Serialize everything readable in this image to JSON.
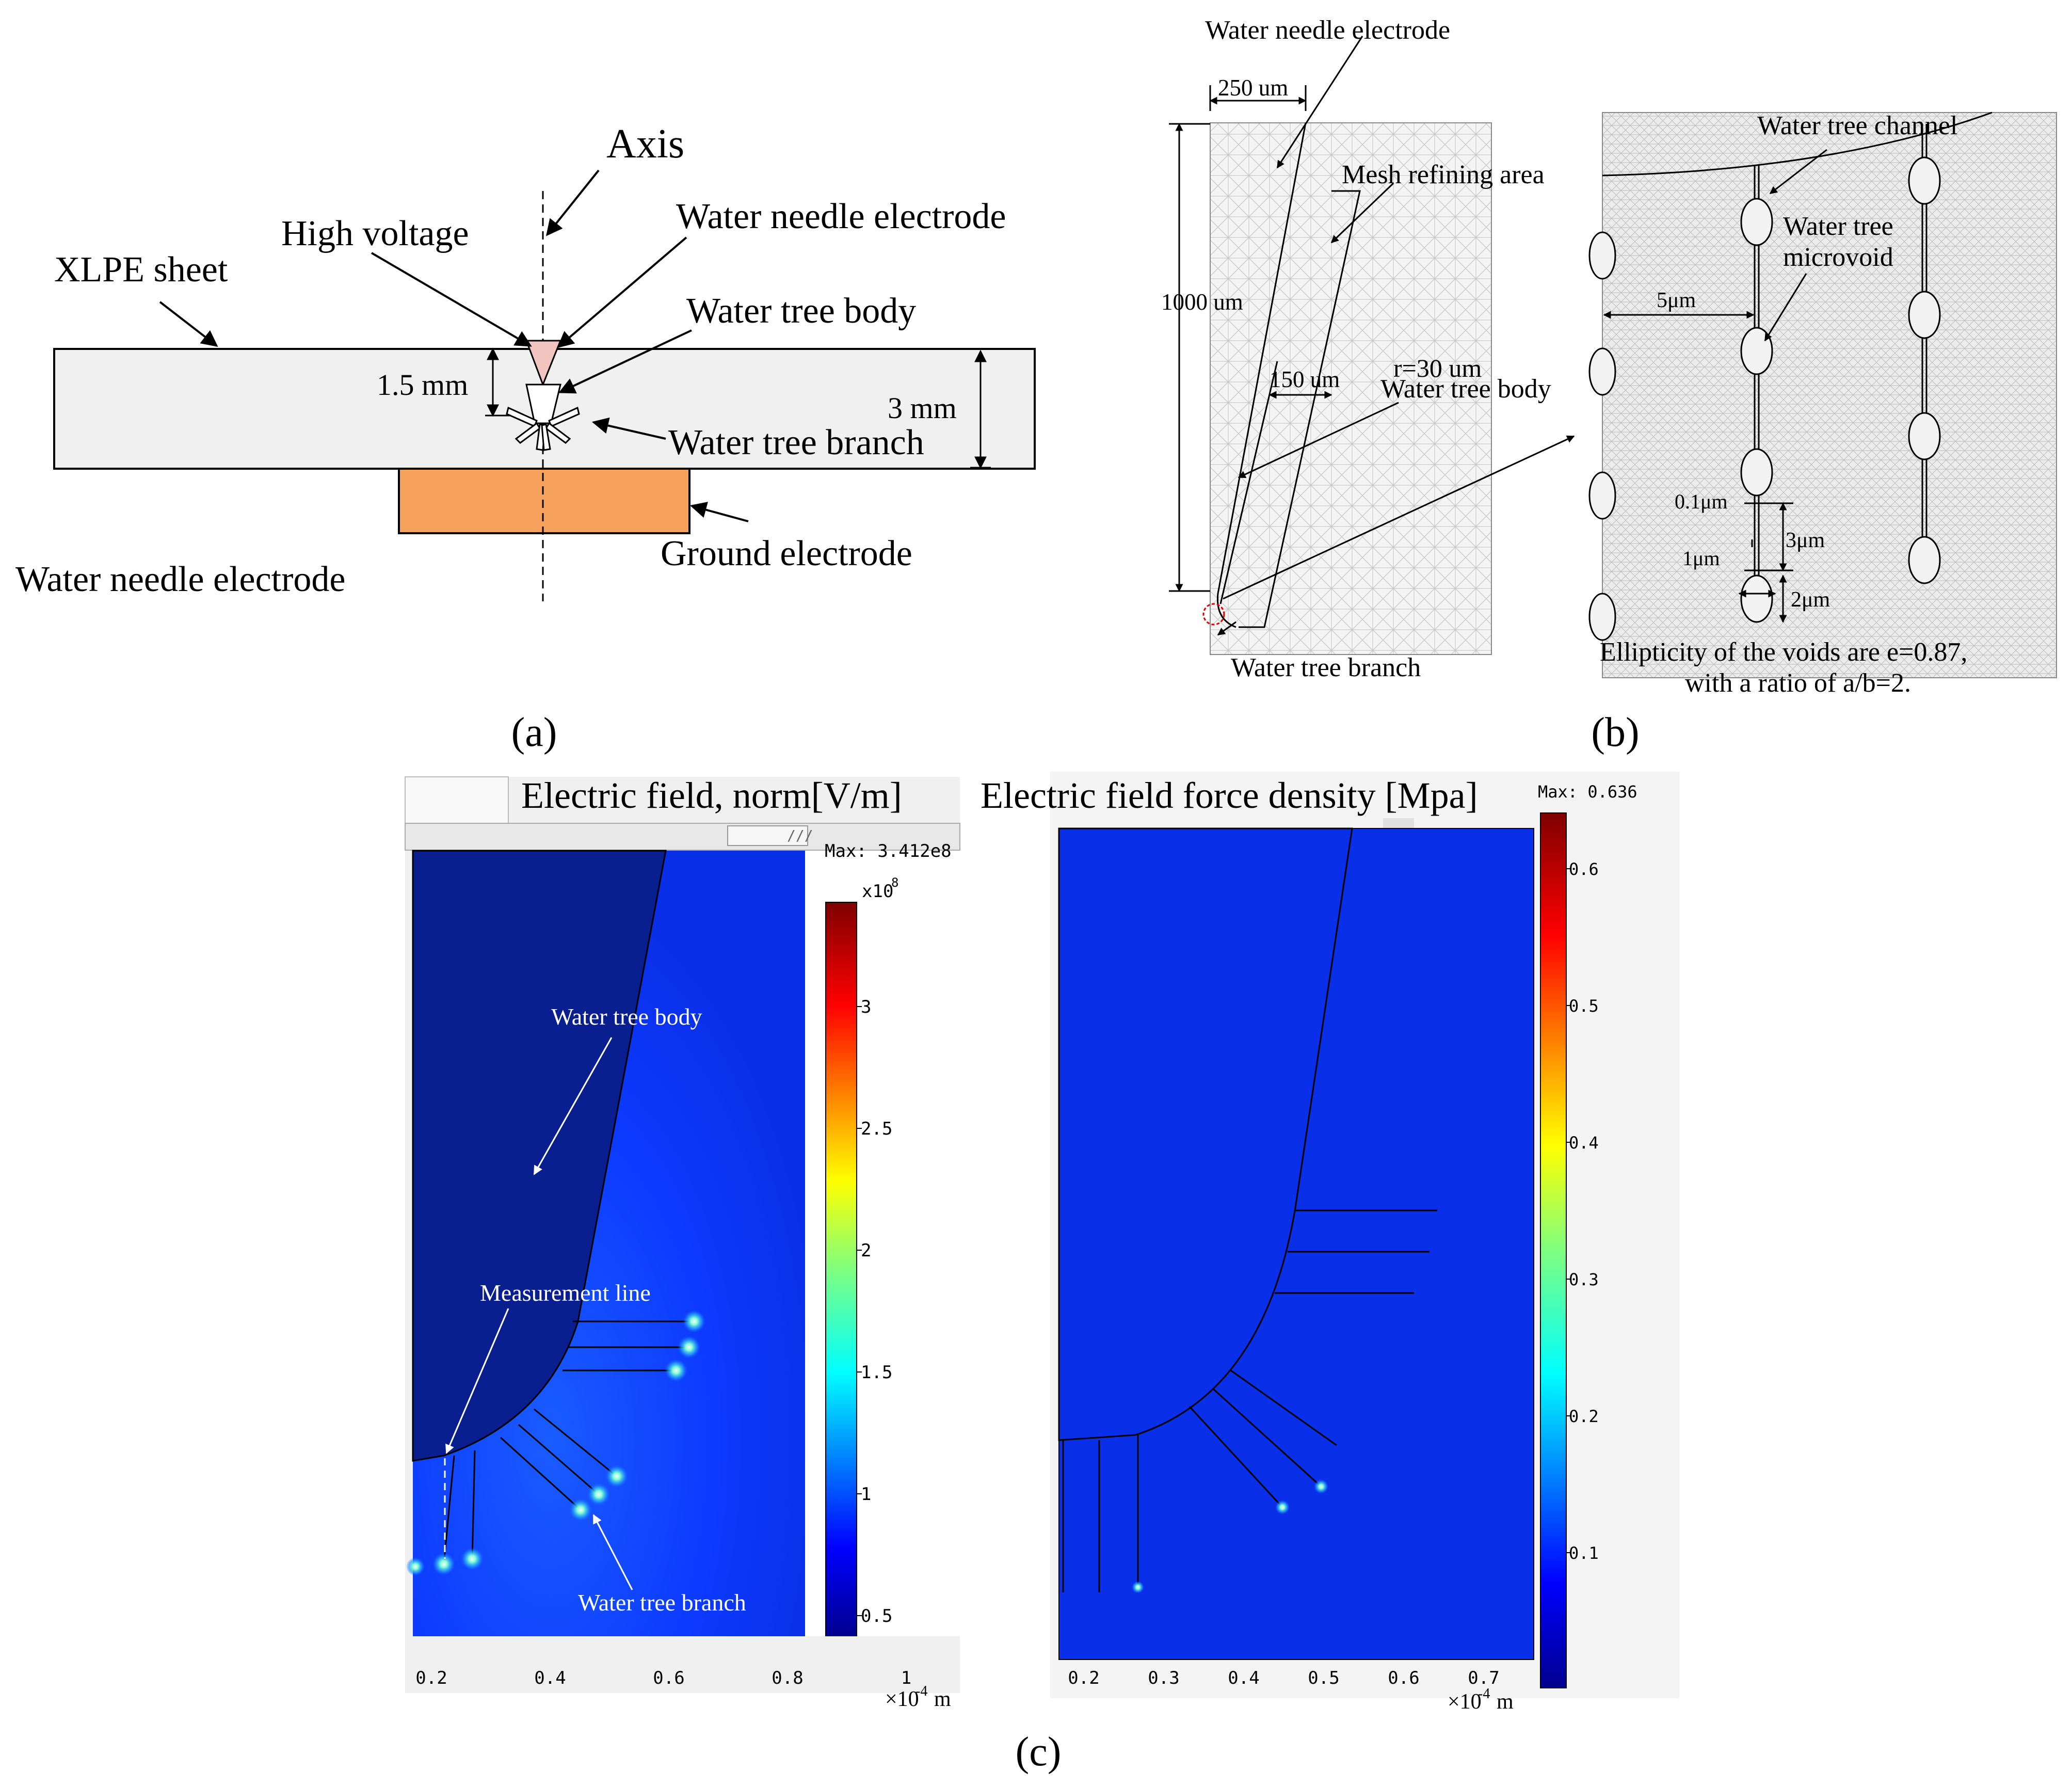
{
  "panel_a": {
    "caption": "(a)",
    "labels": {
      "axis": "Axis",
      "high_voltage": "High voltage",
      "water_needle_electrode_top": "Water needle electrode",
      "xlpe_sheet": "XLPE sheet",
      "water_tree_body": "Water tree body",
      "dim_1_5": "1.5 mm",
      "dim_3": "3 mm",
      "water_tree_branch": "Water tree branch",
      "ground_electrode": "Ground electrode",
      "water_needle_electrode_bottom": "Water needle electrode"
    },
    "colors": {
      "sheet": "#f0f0f0",
      "ground": "#f6a25c",
      "needle": "#f2c4bf"
    }
  },
  "panel_b": {
    "caption": "(b)",
    "labels": {
      "water_needle_electrode": "Water needle electrode",
      "dim_250": "250 um",
      "dim_1000": "1000 um",
      "mesh_refining": "Mesh refining area",
      "dim_150": "150 um",
      "radius": "r=30 um",
      "water_tree_body": "Water tree body",
      "water_tree_branch": "Water tree branch",
      "water_tree_channel": "Water tree channel",
      "water_tree_microvoid": "Water tree\nmicrovoid",
      "dim_5um": "5μm",
      "dim_0_1um": "0.1μm",
      "dim_3um": "3μm",
      "dim_1um": "1μm",
      "dim_2um": "2μm",
      "ellipticity_1": "Ellipticity of the voids are e=0.87,",
      "ellipticity_2": "with a ratio of a/b=2."
    }
  },
  "panel_c": {
    "caption": "(c)",
    "left": {
      "title": "Electric field, norm[V/m]",
      "max_label": "Max: 3.412e8",
      "colorbar_exponent": "x10",
      "colorbar_exponent_power": "8",
      "colorbar_ticks": [
        "3",
        "2.5",
        "2",
        "1.5",
        "1",
        "0.5"
      ],
      "x_ticks": [
        "0.2",
        "0.4",
        "0.6",
        "0.8",
        "1"
      ],
      "x_unit": "×10",
      "x_unit_power": "-4",
      "x_unit_suffix": "m",
      "annotations": {
        "body": "Water tree body",
        "measurement": "Measurement line",
        "branch": "Water tree branch"
      }
    },
    "right": {
      "title": "Electric field force density [Mpa]",
      "max_label": "Max: 0.636",
      "colorbar_ticks": [
        "0.6",
        "0.5",
        "0.4",
        "0.3",
        "0.2",
        "0.1"
      ],
      "x_ticks": [
        "0.2",
        "0.3",
        "0.4",
        "0.5",
        "0.6",
        "0.7"
      ],
      "x_unit": "×10",
      "x_unit_power": "-4",
      "x_unit_suffix": "m"
    }
  }
}
